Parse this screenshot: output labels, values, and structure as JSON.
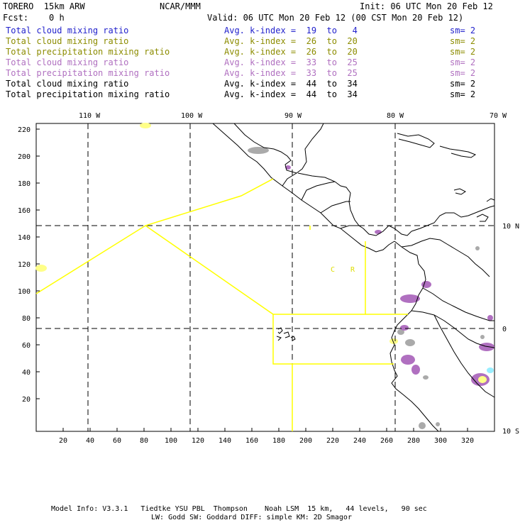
{
  "header": {
    "model": "TORERO  15km ARW",
    "center": "NCAR/MMM",
    "init": "Init: 06 UTC Mon 20 Feb 12",
    "fcst": "Fcst:    0 h",
    "valid": "Valid: 06 UTC Mon 20 Feb 12 (00 CST Mon 20 Feb 12)"
  },
  "legend": {
    "rows": [
      {
        "field": "Total cloud mixing ratio",
        "kindex": "Avg. k-index =  19  to   4",
        "sm": "sm= 2",
        "color": "#2222cc"
      },
      {
        "field": "Total cloud mixing ratio",
        "kindex": "Avg. k-index =  26  to  20",
        "sm": "sm= 2",
        "color": "#8c8c00"
      },
      {
        "field": "Total precipitation mixing ratio",
        "kindex": "Avg. k-index =  26  to  20",
        "sm": "sm= 2",
        "color": "#8c8c00"
      },
      {
        "field": "Total cloud mixing ratio",
        "kindex": "Avg. k-index =  33  to  25",
        "sm": "sm= 2",
        "color": "#b070c0"
      },
      {
        "field": "Total precipitation mixing ratio",
        "kindex": "Avg. k-index =  33  to  25",
        "sm": "sm= 2",
        "color": "#b070c0"
      },
      {
        "field": "Total cloud mixing ratio",
        "kindex": "Avg. k-index =  44  to  34",
        "sm": "sm= 2",
        "color": "#000000"
      },
      {
        "field": "Total precipitation mixing ratio",
        "kindex": "Avg. k-index =  44  to  34",
        "sm": "sm= 2",
        "color": "#000000"
      }
    ]
  },
  "axes": {
    "top_lon_labels": [
      "110 W",
      "100 W",
      "90 W",
      "80 W",
      "70 W"
    ],
    "left_ticks": [
      "220",
      "200",
      "180",
      "160",
      "140",
      "120",
      "100",
      "80",
      "60",
      "40",
      "20"
    ],
    "bottom_ticks": [
      "20",
      "40",
      "60",
      "80",
      "100",
      "120",
      "140",
      "160",
      "180",
      "200",
      "220",
      "240",
      "260",
      "280",
      "300",
      "320"
    ],
    "right_lat_labels": [
      "10 N",
      "0",
      "10 S"
    ]
  },
  "map": {
    "region_label_c": "C",
    "region_label_r": "R",
    "colors": {
      "border": "#ffff00",
      "coast": "#000000",
      "grid": "#000000",
      "purple": "#b070c0",
      "gray": "#aaaaaa",
      "yellow": "#ffff88",
      "cyan": "#99eeff"
    }
  },
  "footer": {
    "line1": "Model Info: V3.3.1   Tiedtke YSU PBL  Thompson    Noah LSM  15 km,   44 levels,   90 sec",
    "line2": "LW: Godd SW: Goddard DIFF: simple KM: 2D Smagor"
  }
}
